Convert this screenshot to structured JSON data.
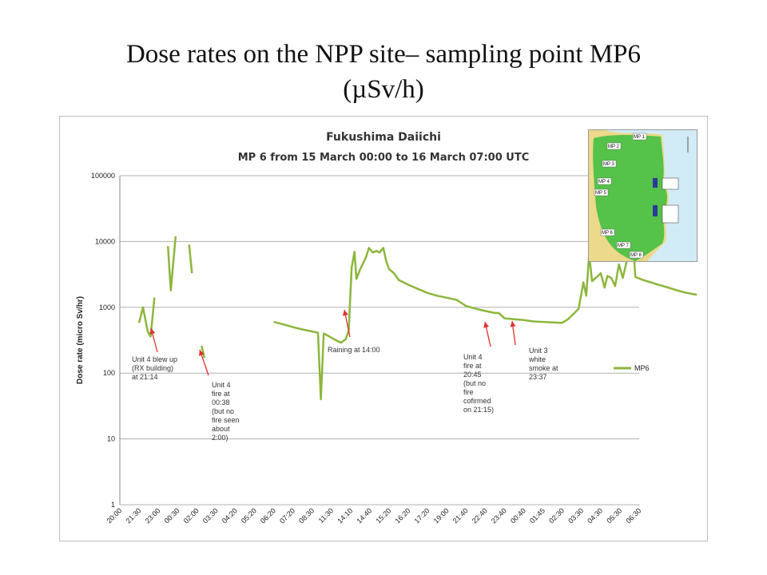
{
  "slide_title": [
    "Dose rates on the NPP site– sampling point MP6",
    "(µSv/h)"
  ],
  "colors": {
    "series": "#8cb63c",
    "arrow": "#e0302a",
    "grid": "#b0b0b0"
  },
  "chart_data": {
    "type": "line",
    "title": "Fukushima Daiichi",
    "subtitle": "MP 6 from 15 March 00:00 to 16 March 07:00 UTC",
    "ylabel": "Dose rate (micro Sv/hr)",
    "xlabel": "",
    "yscale": "log",
    "ylim": [
      1,
      100000
    ],
    "ytick_labels": [
      "1",
      "10",
      "100",
      "1000",
      "10000",
      "100000"
    ],
    "xtick_labels": [
      "20:00",
      "21:30",
      "23:00",
      "00:30",
      "02:00",
      "03:30",
      "04:20",
      "05:20",
      "06:20",
      "07:20",
      "08:30",
      "11:30",
      "14:10",
      "14:40",
      "15:20",
      "16:20",
      "17:20",
      "19:00",
      "21:40",
      "22:40",
      "23:40",
      "00:40",
      "01:45",
      "02:30",
      "03:30",
      "04:30",
      "05:30",
      "06:30"
    ],
    "grid": true,
    "legend": "right",
    "series": [
      {
        "name": "MP6",
        "segments": [
          [
            [
              1.0,
              580
            ],
            [
              1.2,
              1000
            ],
            [
              1.45,
              430
            ],
            [
              1.6,
              360
            ],
            [
              1.8,
              1400
            ]
          ],
          [
            [
              2.5,
              8500
            ],
            [
              2.65,
              1800
            ],
            [
              2.9,
              12000
            ]
          ],
          [
            [
              3.6,
              9000
            ],
            [
              3.75,
              3300
            ]
          ],
          [
            [
              4.25,
              260
            ],
            [
              4.4,
              170
            ]
          ],
          [
            [
              8.0,
              600
            ],
            [
              8.5,
              550
            ],
            [
              9.0,
              500
            ],
            [
              9.5,
              460
            ],
            [
              10.0,
              430
            ],
            [
              10.3,
              410
            ],
            [
              10.45,
              40
            ],
            [
              10.6,
              400
            ],
            [
              10.9,
              360
            ],
            [
              11.2,
              320
            ],
            [
              11.5,
              290
            ],
            [
              11.75,
              330
            ],
            [
              11.9,
              450
            ],
            [
              12.05,
              4000
            ],
            [
              12.2,
              7000
            ],
            [
              12.3,
              2700
            ],
            [
              12.5,
              3800
            ],
            [
              12.8,
              5800
            ],
            [
              12.95,
              8000
            ],
            [
              13.15,
              6800
            ],
            [
              13.35,
              7200
            ],
            [
              13.5,
              6800
            ],
            [
              13.7,
              8000
            ],
            [
              13.85,
              5000
            ],
            [
              14.0,
              3800
            ],
            [
              14.25,
              3300
            ],
            [
              14.5,
              2600
            ],
            [
              15.0,
              2200
            ],
            [
              15.5,
              1900
            ],
            [
              16.0,
              1650
            ],
            [
              16.5,
              1500
            ],
            [
              17.0,
              1400
            ],
            [
              17.5,
              1300
            ],
            [
              18.0,
              1050
            ],
            [
              18.5,
              950
            ],
            [
              19.0,
              880
            ],
            [
              19.5,
              820
            ],
            [
              19.7,
              820
            ],
            [
              20.0,
              680
            ],
            [
              20.5,
              660
            ],
            [
              21.0,
              640
            ],
            [
              21.5,
              610
            ],
            [
              22.0,
              600
            ],
            [
              22.5,
              590
            ],
            [
              23.0,
              580
            ],
            [
              23.3,
              660
            ],
            [
              23.6,
              800
            ],
            [
              23.85,
              950
            ],
            [
              24.1,
              2400
            ],
            [
              24.25,
              1500
            ],
            [
              24.4,
              6500
            ],
            [
              24.55,
              2500
            ],
            [
              24.75,
              2800
            ],
            [
              25.0,
              3300
            ],
            [
              25.2,
              2000
            ],
            [
              25.35,
              3000
            ],
            [
              25.55,
              2800
            ],
            [
              25.75,
              2100
            ],
            [
              25.95,
              4500
            ],
            [
              26.15,
              2800
            ],
            [
              26.35,
              5000
            ],
            [
              26.55,
              11000
            ],
            [
              26.7,
              8000
            ],
            [
              26.8,
              2900
            ],
            [
              27.2,
              2600
            ],
            [
              27.6,
              2400
            ],
            [
              28.0,
              2200
            ],
            [
              28.5,
              2000
            ],
            [
              29.0,
              1800
            ],
            [
              29.5,
              1650
            ],
            [
              30.0,
              1550
            ]
          ]
        ]
      }
    ],
    "annotations": [
      {
        "text": [
          "Unit 4 blew up",
          "(RX building)",
          "at 21:14"
        ]
      },
      {
        "text": [
          "Unit 4",
          "fire at",
          "00:38",
          "(but no",
          "fire seen",
          "about",
          "2:00)"
        ]
      },
      {
        "text": [
          "Raining at 14:00"
        ]
      },
      {
        "text": [
          "Unit 4",
          "fire at",
          "20:45",
          "(but no",
          "fire",
          "cofirmed",
          "on 21:15)"
        ]
      },
      {
        "text": [
          "Unit 3",
          "white",
          "smoke at",
          "23:37"
        ]
      }
    ]
  },
  "map": {
    "labels": [
      "MP 1",
      "MP 2",
      "MP 3",
      "MP 4",
      "MP 5",
      "MP 6",
      "MP 7",
      "MP 8"
    ]
  }
}
